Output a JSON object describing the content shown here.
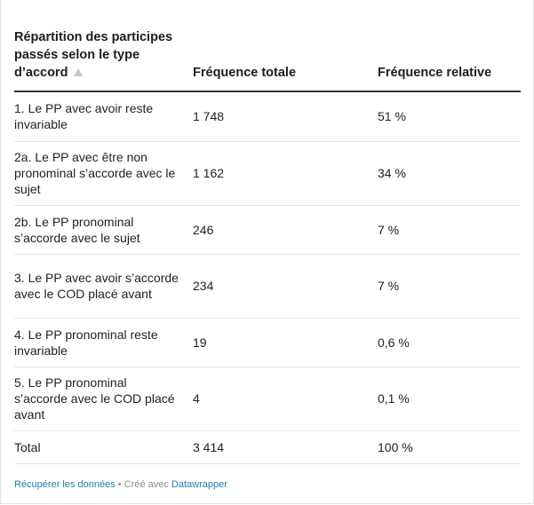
{
  "table": {
    "headers": {
      "col1": "Répartition des participes passés selon le type d’accord",
      "col2": "Fréquence totale",
      "col3": "Fréquence relative"
    },
    "rows": [
      {
        "label": "1. Le PP avec avoir reste invariable",
        "total": "1 748",
        "relative": "51 %"
      },
      {
        "label": "2a. Le PP avec être non pronominal s’accorde avec le sujet",
        "total": "1 162",
        "relative": "34 %"
      },
      {
        "label": "2b. Le PP pronominal s’accorde avec le sujet",
        "total": "246",
        "relative": "7 %"
      },
      {
        "label": "3. Le PP avec avoir s’accorde avec le COD placé avant",
        "total": "234",
        "relative": "7 %"
      },
      {
        "label": "4. Le PP pronominal reste invariable",
        "total": "19",
        "relative": "0,6 %"
      },
      {
        "label": "5. Le PP pronominal s’accorde avec le COD placé avant",
        "total": "4",
        "relative": "0,1 %"
      },
      {
        "label": "Total",
        "total": "3 414",
        "relative": "100 %"
      }
    ]
  },
  "footer": {
    "download_label": "Récupérer les données",
    "separator": " • Créé avec ",
    "tool_label": "Datawrapper"
  },
  "colors": {
    "link": "#1d81a2",
    "header_rule": "#333333",
    "row_rule": "#e6e6e6"
  },
  "icons": {
    "sort": "sort-ascending-icon"
  }
}
